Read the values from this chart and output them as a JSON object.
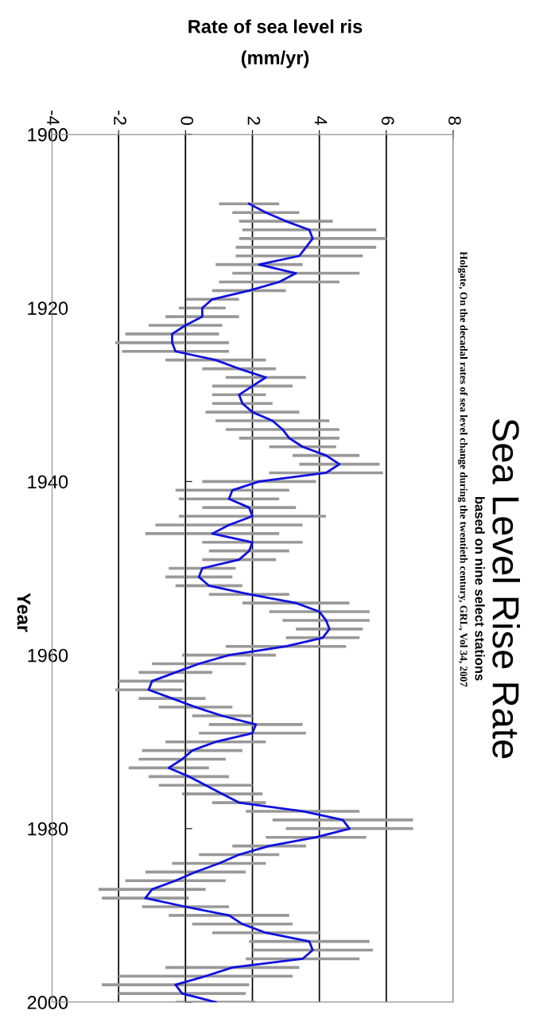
{
  "chart_data": {
    "type": "line",
    "title": "Sea Level Rise Rate",
    "subtitle": "based on nine select stations",
    "ylabel": "Year",
    "xlabel": "Rate of sea level ris\n(mm/yr)",
    "annotations": [
      "Holgate, On the decadal rates of sea level change during the twentieth century, GRL, Vol 34, 2007"
    ],
    "series": [
      {
        "color": "#1010e0",
        "values": [
          1908,
          1909,
          1910,
          1911,
          1912,
          1913,
          1914,
          1915,
          1916,
          1917,
          1918,
          1919,
          1920,
          1921,
          1922,
          1923,
          1924,
          1925,
          1926,
          1927,
          1928,
          1929,
          1930,
          1931,
          1932,
          1933,
          1934,
          1935,
          1936,
          1937,
          1938,
          1939,
          1940,
          1941,
          1942,
          1943,
          1944,
          1945,
          1946,
          1947,
          1948,
          1949,
          1950,
          1951,
          1952,
          1953,
          1954,
          1955,
          1956,
          1957,
          1958,
          1959,
          1960,
          1961,
          1962,
          1963,
          1964,
          1965,
          1966,
          1967,
          1968,
          1969,
          1970,
          1971,
          1972,
          1973,
          1974,
          1975,
          1976,
          1977,
          1978,
          1979,
          1980,
          1981,
          1982,
          1983,
          1984,
          1985,
          1986,
          1987,
          1988,
          1989,
          1990,
          1991,
          1992,
          1993,
          1994,
          1995,
          1996,
          1997,
          1998,
          1999,
          2000
        ],
        "x": [
          1.9,
          2.4,
          3.0,
          3.7,
          3.8,
          3.6,
          3.4,
          2.2,
          3.3,
          2.8,
          1.9,
          0.8,
          0.5,
          0.5,
          0.0,
          -0.4,
          -0.4,
          -0.3,
          0.9,
          1.6,
          2.4,
          2.0,
          1.6,
          1.7,
          2.0,
          2.6,
          2.9,
          3.1,
          3.5,
          4.2,
          4.6,
          4.2,
          2.2,
          1.4,
          1.3,
          1.9,
          2.0,
          1.3,
          0.8,
          2.0,
          1.9,
          1.6,
          0.5,
          0.4,
          0.7,
          1.9,
          3.3,
          4.0,
          4.2,
          4.3,
          4.1,
          3.0,
          1.3,
          0.4,
          -0.3,
          -1.0,
          -1.1,
          -0.4,
          0.3,
          1.1,
          2.1,
          2.0,
          0.9,
          0.2,
          -0.1,
          -0.5,
          0.1,
          0.6,
          1.1,
          1.6,
          3.5,
          4.7,
          4.9,
          3.9,
          2.5,
          1.6,
          1.0,
          0.3,
          -0.3,
          -1.0,
          -1.2,
          0.0,
          1.3,
          1.7,
          2.4,
          3.7,
          3.8,
          3.5,
          1.4,
          0.6,
          -0.3,
          -0.1,
          0.9
        ],
        "xerrors": [
          0.9,
          1.0,
          1.4,
          2.0,
          2.2,
          2.1,
          1.9,
          1.3,
          1.9,
          1.8,
          1.1,
          0.8,
          0.7,
          1.1,
          1.1,
          1.4,
          1.7,
          1.6,
          1.5,
          1.1,
          1.2,
          1.2,
          0.8,
          0.9,
          1.4,
          1.7,
          1.7,
          1.5,
          1.0,
          1.0,
          1.2,
          1.7,
          1.7,
          1.7,
          1.5,
          1.4,
          2.2,
          2.2,
          2.0,
          1.5,
          1.2,
          1.1,
          1.0,
          1.0,
          1.0,
          1.2,
          1.6,
          1.5,
          1.3,
          1.0,
          1.1,
          1.8,
          1.4,
          1.4,
          1.1,
          1.0,
          1.0,
          1.0,
          1.1,
          0.9,
          1.4,
          1.6,
          1.5,
          1.5,
          1.3,
          1.2,
          1.2,
          1.4,
          1.2,
          0.8,
          1.7,
          2.1,
          1.9,
          1.5,
          1.1,
          1.2,
          1.4,
          1.5,
          1.5,
          1.6,
          1.3,
          1.3,
          1.8,
          1.5,
          1.6,
          1.8,
          1.8,
          1.7,
          2.0,
          2.6,
          2.2,
          1.9,
          1.2
        ]
      }
    ],
    "ylim": [
      2000,
      1900
    ],
    "yticks": [
      1900,
      1920,
      1940,
      1960,
      1980,
      2000
    ],
    "xlim": [
      -4,
      8
    ],
    "xticks": [
      -4,
      -2,
      0,
      2,
      4,
      6,
      8
    ],
    "grid": "x",
    "marker": "none",
    "line_style": "solid"
  }
}
